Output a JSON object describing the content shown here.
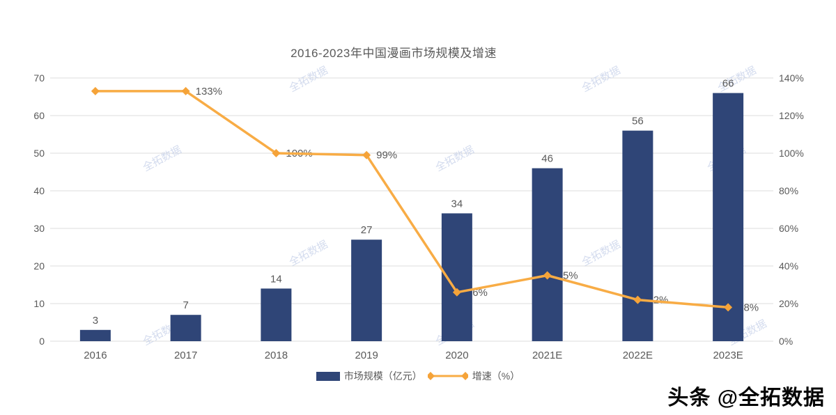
{
  "title": "2016-2023年中国漫画市场规模及增速",
  "watermark_text": "全拓数据",
  "logo": {
    "prefix": "头条 ",
    "handle": "@全拓数据"
  },
  "colors": {
    "bar": "#2F4577",
    "line": "#F8AC45",
    "marker": "#F5A339",
    "text": "#595959",
    "grid": "#DCDCDC",
    "watermark": "#C9D3EA"
  },
  "chart_data": {
    "type": "bar+line combo",
    "title": "2016-2023年中国漫画市场规模及增速",
    "categories": [
      "2016",
      "2017",
      "2018",
      "2019",
      "2020",
      "2021E",
      "2022E",
      "2023E"
    ],
    "series": [
      {
        "name": "市场规模（亿元）",
        "type": "bar",
        "axis": "left",
        "values": [
          3,
          7,
          14,
          27,
          34,
          46,
          56,
          66
        ],
        "labels": [
          "3",
          "7",
          "14",
          "27",
          "34",
          "46",
          "56",
          "66"
        ]
      },
      {
        "name": "增速（%）",
        "type": "line",
        "axis": "right",
        "values": [
          133,
          133,
          100,
          99,
          26,
          35,
          22,
          18
        ],
        "labels": [
          "",
          "133%",
          "100%",
          "99%",
          "26%",
          "35%",
          "22%",
          "18%"
        ]
      }
    ],
    "left_axis": {
      "min": 0,
      "max": 70,
      "ticks": [
        "0",
        "10",
        "20",
        "30",
        "40",
        "50",
        "60",
        "70"
      ]
    },
    "right_axis": {
      "min": 0,
      "max": 140,
      "ticks": [
        "0%",
        "20%",
        "40%",
        "60%",
        "80%",
        "100%",
        "120%",
        "140%"
      ]
    },
    "grid": "horizontal",
    "legend_position": "bottom",
    "legend": [
      {
        "label": "市场规模（亿元）",
        "swatch": "bar"
      },
      {
        "label": "增速（%）",
        "swatch": "line-diamond"
      }
    ]
  }
}
